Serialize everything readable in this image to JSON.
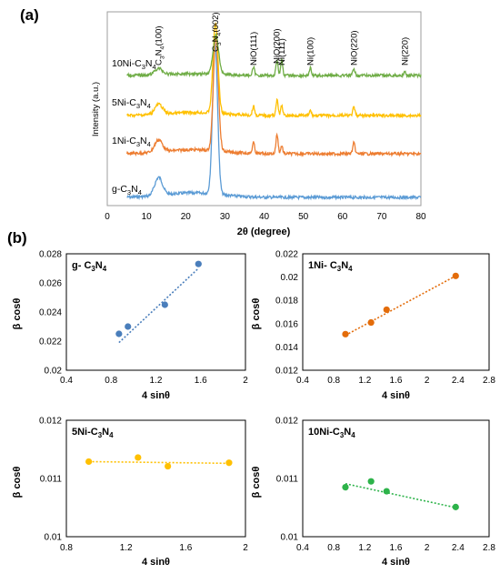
{
  "panels": {
    "a": "(a)",
    "b": "(b)"
  },
  "chart_data": [
    {
      "type": "line",
      "title": "",
      "xlabel": "2θ (degree)",
      "ylabel": "Intensity (a.u.)",
      "xlim": [
        0,
        80
      ],
      "xticks": [
        0,
        10,
        20,
        30,
        40,
        50,
        60,
        70,
        80
      ],
      "grid": false,
      "series": [
        {
          "name": "g-C3N4",
          "label": [
            "g-C",
            "3",
            "N",
            "4"
          ],
          "color": "#5b9bd5",
          "peaks": [
            {
              "x": 13.1,
              "h": 0.12,
              "w": 1.4
            },
            {
              "x": 27.5,
              "h": 1.0,
              "w": 0.9
            }
          ]
        },
        {
          "name": "1Ni-C3N4",
          "label": [
            "1Ni-C",
            "3",
            "N",
            "4"
          ],
          "color": "#ed7d31",
          "peaks": [
            {
              "x": 13.1,
              "h": 0.09,
              "w": 1.4
            },
            {
              "x": 27.7,
              "h": 0.85,
              "w": 0.9
            },
            {
              "x": 37.3,
              "h": 0.08,
              "w": 0.4
            },
            {
              "x": 43.3,
              "h": 0.14,
              "w": 0.4
            },
            {
              "x": 44.5,
              "h": 0.06,
              "w": 0.35
            },
            {
              "x": 62.9,
              "h": 0.08,
              "w": 0.4
            }
          ]
        },
        {
          "name": "5Ni-C3N4",
          "label": [
            "5Ni-C",
            "3",
            "N",
            "4"
          ],
          "color": "#ffc000",
          "peaks": [
            {
              "x": 13.1,
              "h": 0.1,
              "w": 1.4
            },
            {
              "x": 27.6,
              "h": 0.9,
              "w": 0.9
            },
            {
              "x": 37.3,
              "h": 0.09,
              "w": 0.4
            },
            {
              "x": 43.3,
              "h": 0.15,
              "w": 0.4
            },
            {
              "x": 44.5,
              "h": 0.1,
              "w": 0.35
            },
            {
              "x": 51.8,
              "h": 0.05,
              "w": 0.35
            },
            {
              "x": 62.9,
              "h": 0.08,
              "w": 0.4
            }
          ]
        },
        {
          "name": "10Ni-C3N4",
          "label": [
            "10Ni-C",
            "3",
            "N",
            "4"
          ],
          "color": "#70ad47",
          "peaks": [
            {
              "x": 13.1,
              "h": 0.1,
              "w": 1.4
            },
            {
              "x": 27.7,
              "h": 0.62,
              "w": 1.0
            },
            {
              "x": 37.3,
              "h": 0.12,
              "w": 0.4
            },
            {
              "x": 43.3,
              "h": 0.24,
              "w": 0.4
            },
            {
              "x": 44.5,
              "h": 0.26,
              "w": 0.35
            },
            {
              "x": 51.8,
              "h": 0.12,
              "w": 0.35
            },
            {
              "x": 62.9,
              "h": 0.1,
              "w": 0.4
            },
            {
              "x": 75.9,
              "h": 0.05,
              "w": 0.4
            }
          ]
        }
      ],
      "peak_labels": [
        {
          "x": 13.1,
          "parts": [
            "C",
            "3",
            "N",
            "4",
            "(100)"
          ]
        },
        {
          "x": 27.6,
          "parts": [
            "C",
            "3",
            "N",
            "4",
            "(002)"
          ]
        },
        {
          "x": 37.3,
          "parts": [
            "NiO(111)"
          ]
        },
        {
          "x": 43.3,
          "parts": [
            "NiO(200)"
          ]
        },
        {
          "x": 44.5,
          "parts": [
            "Ni(111)"
          ]
        },
        {
          "x": 51.8,
          "parts": [
            "Ni(100)"
          ]
        },
        {
          "x": 62.9,
          "parts": [
            "NiO(220)"
          ]
        },
        {
          "x": 75.9,
          "parts": [
            "Ni(220)"
          ]
        }
      ]
    },
    {
      "type": "scatter",
      "label": [
        "g- C",
        "3",
        "N",
        "4"
      ],
      "xlabel": "4 sinθ",
      "ylabel": "β cosθ",
      "xlim": [
        0.4,
        2
      ],
      "ylim": [
        0.02,
        0.028
      ],
      "xticks": [
        "0.4",
        "0.8",
        "1.2",
        "1.6",
        "2"
      ],
      "yticks": [
        "0.02",
        "0.022",
        "0.024",
        "0.026",
        "0.028"
      ],
      "color": "#4a7ebb",
      "points": [
        [
          0.87,
          0.0225
        ],
        [
          0.95,
          0.023
        ],
        [
          1.28,
          0.0245
        ],
        [
          1.58,
          0.0273
        ]
      ],
      "trend": [
        [
          0.87,
          0.0219
        ],
        [
          1.58,
          0.027
        ]
      ]
    },
    {
      "type": "scatter",
      "label": [
        "1Ni- C",
        "3",
        "N",
        "4"
      ],
      "xlabel": "4 sinθ",
      "ylabel": "β cosθ",
      "xlim": [
        0.4,
        2.8
      ],
      "ylim": [
        0.012,
        0.022
      ],
      "xticks": [
        "0.4",
        "0.8",
        "1.2",
        "1.6",
        "2",
        "2.4",
        "2.8"
      ],
      "yticks": [
        "0.012",
        "0.014",
        "0.016",
        "0.018",
        "0.02",
        "0.022"
      ],
      "color": "#e36c0a",
      "points": [
        [
          0.95,
          0.0151
        ],
        [
          1.28,
          0.0161
        ],
        [
          1.48,
          0.0172
        ],
        [
          2.37,
          0.0201
        ]
      ],
      "trend": [
        [
          0.95,
          0.015
        ],
        [
          2.37,
          0.0201
        ]
      ]
    },
    {
      "type": "scatter",
      "label": [
        "5Ni-C",
        "3",
        "N",
        "4"
      ],
      "xlabel": "4 sinθ",
      "ylabel": "β cosθ",
      "xlim": [
        0.8,
        2.0
      ],
      "ylim": [
        0.01,
        0.012
      ],
      "xticks": [
        "0.8",
        "1.2",
        "1.6",
        "2"
      ],
      "yticks": [
        "0.01",
        "0.011",
        "0.012"
      ],
      "color": "#ffc000",
      "points": [
        [
          0.95,
          0.01129
        ],
        [
          1.28,
          0.01136
        ],
        [
          1.48,
          0.01121
        ],
        [
          1.89,
          0.01127
        ]
      ],
      "trend": [
        [
          0.95,
          0.01129
        ],
        [
          1.89,
          0.01126
        ]
      ]
    },
    {
      "type": "scatter",
      "label": [
        "10Ni-C",
        "3",
        "N",
        "4"
      ],
      "xlabel": "4 sinθ",
      "ylabel": "β cosθ",
      "xlim": [
        0.4,
        2.8
      ],
      "ylim": [
        0.01,
        0.012
      ],
      "xticks": [
        "0.4",
        "0.8",
        "1.2",
        "1.6",
        "2",
        "2.4",
        "2.8"
      ],
      "yticks": [
        "0.01",
        "0.011",
        "0.012"
      ],
      "color": "#2db34a",
      "points": [
        [
          0.95,
          0.01085
        ],
        [
          1.28,
          0.01095
        ],
        [
          1.48,
          0.01078
        ],
        [
          2.37,
          0.01051
        ]
      ],
      "trend": [
        [
          0.95,
          0.01091
        ],
        [
          2.37,
          0.0105
        ]
      ]
    }
  ]
}
